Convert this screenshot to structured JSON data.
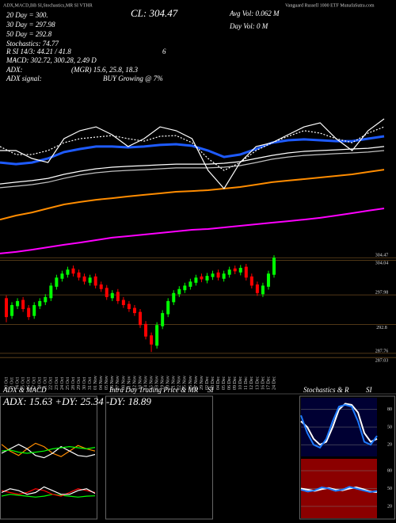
{
  "chart_data": [
    {
      "type": "line",
      "title": "ADX,MACD,BB SI,Stochastics,MR SI VTHR",
      "subtitle": "Vanguard Russell 1000 ETF MunafaSutra.com",
      "annotations": [
        "20 Day = 300.",
        "30 Day = 297.98",
        "50 Day = 292.8",
        "Stochastics: 74.77",
        "R SI 14/3: 44.21 / 41.8",
        "6",
        "MACD: 302.72, 300.28, 2.49 D",
        "ADX:",
        "(MGR) 15.6, 25.8, 18.3",
        "ADX signal:",
        "BUY Growing @ 7%",
        "CL: 304.47",
        "Avg Vol: 0.062 M",
        "Day Vol: 0 M"
      ],
      "ylim": [
        0,
        100
      ],
      "series": [
        {
          "color": "#c0c0c0",
          "values": [
            51.7,
            52.8,
            53.9,
            55.6,
            58.3,
            60.6,
            62.2,
            63.3,
            63.9,
            64.4,
            65,
            65.6,
            65.6,
            65.6,
            66.1,
            67.2,
            69.4,
            71.7,
            73.3,
            74.4,
            75,
            75.6,
            76.1,
            76.7,
            77.8
          ]
        },
        {
          "color": "#ffffff",
          "values": [
            54.4,
            55.6,
            56.7,
            58.3,
            61.1,
            63.3,
            65,
            66.1,
            66.7,
            67.2,
            67.8,
            68.3,
            68.3,
            68.3,
            68.9,
            70,
            72.2,
            74.4,
            76.1,
            77.2,
            77.8,
            78.3,
            78.9,
            79.4,
            80.6
          ]
        },
        {
          "color": "#ff8c00",
          "values": [
            29.4,
            32.2,
            34.4,
            37.2,
            40,
            41.7,
            43.3,
            44.4,
            45.6,
            46.7,
            47.8,
            48.9,
            49.4,
            50,
            51.1,
            52.2,
            53.9,
            55.6,
            56.7,
            57.8,
            58.9,
            60,
            61.1,
            62.8,
            64.4
          ]
        },
        {
          "color": "#ff00ff",
          "values": [
            5.6,
            6.7,
            8.3,
            10,
            11.7,
            13.3,
            15,
            16.7,
            17.8,
            18.9,
            20,
            21.1,
            22.2,
            22.8,
            23.9,
            25,
            26.1,
            27.2,
            28.3,
            29.4,
            30.6,
            32.2,
            33.9,
            35.6,
            37.2
          ]
        },
        {
          "color": "#1e5bff",
          "values": [
            69.4,
            68.3,
            69.4,
            72.2,
            76.7,
            78.9,
            80.6,
            80.6,
            80,
            80.6,
            81.7,
            82.2,
            81.1,
            77.8,
            73.3,
            75,
            78.9,
            83.3,
            85,
            85.6,
            85,
            84.4,
            84.4,
            86.1,
            87.8
          ]
        },
        {
          "color": "#ffffff",
          "dashed": true,
          "values": [
            80.6,
            75,
            75,
            77.8,
            83.3,
            86.1,
            87.2,
            88.3,
            86.1,
            84.4,
            87.8,
            88.3,
            83.3,
            72.2,
            63.9,
            69.4,
            77.8,
            83.3,
            87.8,
            91.7,
            90,
            86.1,
            83.3,
            90,
            94.4
          ]
        },
        {
          "color": "#ffffff",
          "values": [
            77.8,
            77.8,
            72.2,
            69.4,
            86.1,
            91.7,
            94.4,
            88.9,
            80.6,
            86.1,
            94.4,
            91.7,
            86.1,
            63.9,
            51.1,
            69.4,
            80.6,
            83.3,
            88.9,
            94.4,
            97.2,
            86.1,
            77.8,
            91.7,
            100
          ]
        }
      ]
    },
    {
      "type": "candlestick",
      "categories": [
        "10 Oct",
        "11 Oct",
        "14 Oct",
        "15 Oct",
        "16 Oct",
        "17 Oct",
        "18 Oct",
        "21 Oct",
        "22 Oct",
        "23 Oct",
        "24 Oct",
        "25 Oct",
        "28 Oct",
        "29 Oct",
        "30 Oct",
        "31 Oct",
        "01 Nov",
        "04 Nov",
        "05 Nov",
        "06 Nov",
        "07 Nov",
        "08 Nov",
        "11 Nov",
        "12 Nov",
        "13 Nov",
        "14 Nov",
        "15 Nov",
        "18 Nov",
        "19 Nov",
        "20 Nov",
        "21 Nov",
        "22 Nov",
        "25 Nov",
        "26 Nov",
        "27 Nov",
        "29 Nov",
        "02 Dec",
        "03 Dec",
        "04 Dec",
        "05 Dec",
        "06 Dec",
        "09 Dec",
        "10 Dec",
        "11 Dec",
        "12 Dec",
        "13 Dec",
        "16 Dec",
        "17 Dec",
        "24 Dec"
      ],
      "open": [
        297.4,
        294.3,
        296.0,
        297.1,
        295.7,
        294.3,
        296.0,
        296.7,
        297.4,
        299.4,
        300.8,
        301.5,
        302.6,
        301.9,
        301.2,
        300.1,
        301.2,
        299.8,
        299.2,
        297.4,
        298.5,
        297.1,
        296.4,
        295.7,
        295.0,
        292.9,
        290.9,
        289.1,
        292.5,
        294.6,
        296.7,
        298.1,
        298.8,
        299.4,
        300.1,
        301.2,
        300.5,
        301.1,
        301.9,
        300.8,
        301.5,
        302.6,
        301.9,
        302.9,
        301.2,
        299.8,
        298.1,
        299.4,
        301.5
      ],
      "high": [
        297.9,
        296.7,
        297.4,
        297.6,
        296.2,
        296.7,
        297.4,
        298.1,
        300.1,
        301.5,
        302.2,
        302.9,
        303.1,
        302.4,
        301.7,
        301.5,
        301.7,
        300.3,
        299.7,
        298.8,
        299.0,
        297.6,
        296.9,
        296.2,
        295.5,
        293.4,
        291.4,
        293.2,
        295.3,
        297.4,
        298.8,
        299.5,
        300.1,
        300.8,
        301.5,
        301.7,
        301.8,
        302.2,
        302.4,
        302.2,
        302.9,
        303.1,
        303.2,
        303.4,
        301.7,
        300.3,
        300.1,
        302.2,
        304.9
      ],
      "low": [
        293.2,
        293.8,
        295.5,
        295.0,
        293.6,
        293.8,
        295.5,
        296.2,
        296.9,
        298.9,
        300.3,
        301.0,
        301.2,
        300.5,
        299.8,
        299.6,
        299.1,
        298.5,
        297.1,
        296.9,
        296.4,
        295.7,
        295.0,
        294.3,
        292.2,
        290.2,
        288.0,
        288.6,
        292.0,
        294.1,
        296.2,
        297.6,
        298.3,
        298.9,
        299.6,
        300.2,
        300.0,
        300.6,
        300.5,
        300.3,
        301.0,
        301.6,
        301.4,
        300.5,
        299.1,
        297.8,
        297.6,
        298.9,
        301.0
      ],
      "close": [
        294.1,
        296.2,
        296.9,
        295.5,
        294.1,
        296.2,
        296.9,
        297.6,
        299.6,
        301.0,
        301.7,
        302.4,
        301.7,
        301.0,
        300.3,
        301.0,
        299.6,
        299.0,
        297.6,
        298.3,
        296.9,
        296.2,
        295.5,
        294.8,
        292.7,
        290.7,
        289.3,
        292.7,
        294.8,
        296.9,
        298.3,
        299.0,
        299.6,
        300.3,
        301.0,
        300.7,
        301.3,
        301.7,
        301.0,
        301.7,
        302.4,
        302.1,
        302.7,
        301.0,
        299.6,
        298.3,
        299.6,
        301.7,
        304.47
      ],
      "up_color": "#00ff00",
      "down_color": "#ff0000",
      "grid_color": "#6b4a1e",
      "ylim": [
        286.5,
        305.2
      ],
      "yticks": [
        304.47,
        304.04,
        297.98,
        292.8,
        287.76,
        287.03
      ]
    },
    {
      "type": "line",
      "title": "ADX & MACD",
      "subtitle": "ADX: 15.63 +DY: 25.34 -DY: 18.89",
      "ylim": [
        0,
        50
      ],
      "series": [
        {
          "color": "#ff8c00",
          "values": [
            28,
            22,
            18,
            24,
            29,
            26,
            20,
            17,
            22,
            27,
            24,
            22
          ]
        },
        {
          "color": "#ffffff",
          "values": [
            20,
            24,
            28,
            24,
            18,
            16,
            20,
            26,
            22,
            18,
            17,
            18.9
          ]
        },
        {
          "color": "#00ff00",
          "values": [
            22,
            23,
            21,
            20,
            21,
            22,
            24,
            25,
            26,
            25,
            24,
            25.3
          ]
        }
      ]
    },
    {
      "type": "line",
      "ylim": [
        -10,
        10
      ],
      "series": [
        {
          "color": "#00ff00",
          "values": [
            1,
            2,
            1.5,
            1,
            0.5,
            1,
            2,
            1.5,
            1,
            0.5,
            1,
            1.2
          ]
        },
        {
          "color": "#ff0000",
          "values": [
            4,
            3,
            2,
            3,
            5,
            4,
            2,
            1,
            3,
            5,
            4,
            3
          ]
        },
        {
          "color": "#ffffff",
          "values": [
            3,
            5,
            4,
            2,
            3,
            6,
            4,
            2,
            2,
            4,
            5,
            2.5
          ]
        }
      ]
    },
    {
      "type": "blank",
      "title": "Intra Day Trading Price & MR",
      "subtitle": "SI"
    },
    {
      "type": "line",
      "title": "Stochastics & R",
      "subtitle": "SI",
      "background": "#000033",
      "ylim": [
        0,
        100
      ],
      "yticks": [
        20,
        50,
        80
      ],
      "series": [
        {
          "color": "#ffffff",
          "values": [
            60,
            50,
            30,
            20,
            25,
            50,
            80,
            90,
            88,
            75,
            40,
            25,
            30
          ]
        },
        {
          "color": "#1e7bff",
          "values": [
            70,
            40,
            20,
            15,
            30,
            60,
            85,
            88,
            85,
            60,
            25,
            20,
            35
          ]
        }
      ]
    },
    {
      "type": "line",
      "background": "#8b0000",
      "ylim": [
        0,
        100
      ],
      "yticks": [
        20,
        50,
        80
      ],
      "series": [
        {
          "color": "#ffffff",
          "values": [
            50,
            48,
            46,
            49,
            51,
            48,
            47,
            50,
            52,
            49,
            45,
            44
          ]
        },
        {
          "color": "#1e7bff",
          "values": [
            48,
            45,
            47,
            52,
            50,
            46,
            48,
            53,
            50,
            47,
            44,
            46
          ]
        }
      ]
    }
  ]
}
